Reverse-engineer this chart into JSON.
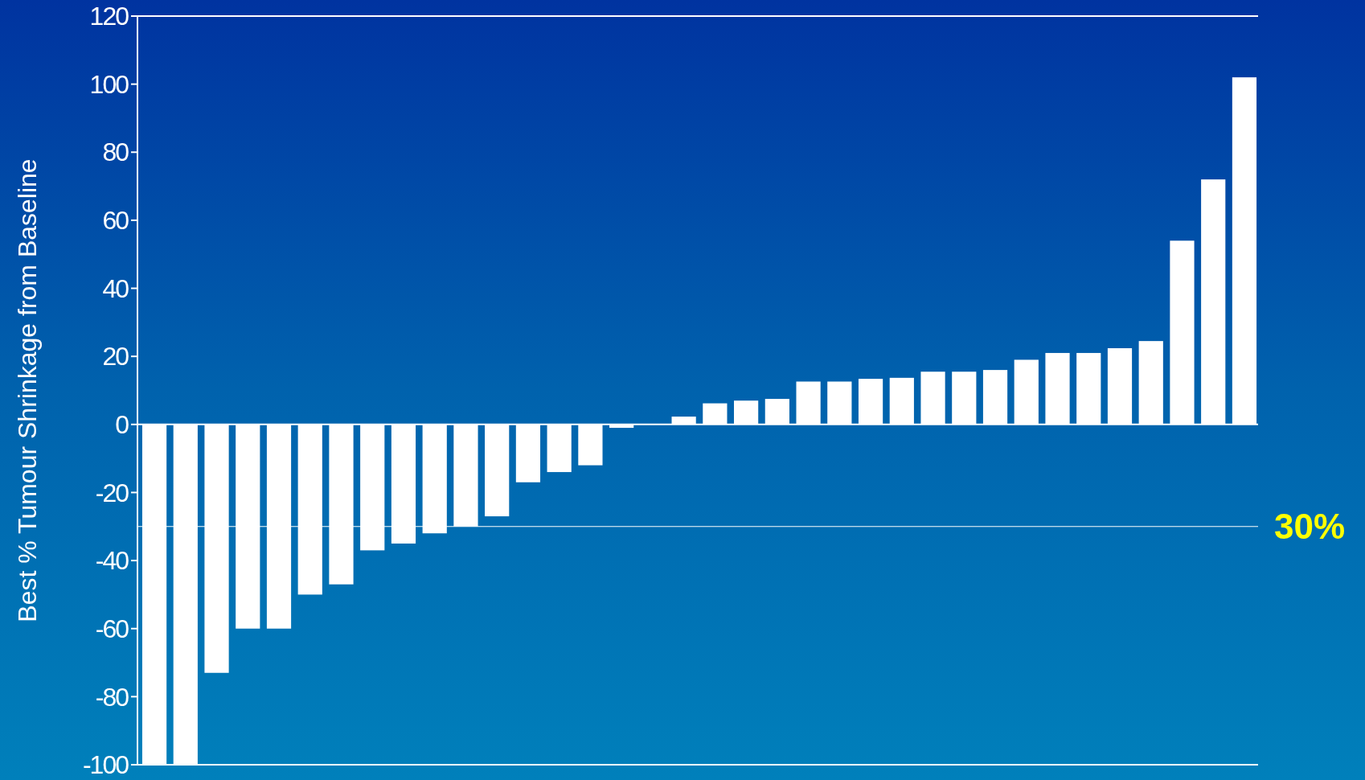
{
  "chart_data": {
    "type": "bar",
    "ylabel": "Best % Tumour Shrinkage from Baseline",
    "categories": [
      null,
      null,
      null,
      null,
      null,
      null,
      null,
      null,
      null,
      null,
      null,
      null,
      null,
      null,
      null,
      null,
      null,
      null,
      null,
      null,
      null,
      null,
      null,
      null,
      null,
      null,
      null,
      null,
      null,
      null,
      null,
      null,
      null,
      null,
      null,
      null
    ],
    "values": [
      -100,
      -100,
      -73,
      -60,
      -60,
      -50,
      -47,
      -37,
      -35,
      -32,
      -30,
      -27,
      -17,
      -14,
      -12,
      -1,
      0,
      2.3,
      6.2,
      7,
      7.5,
      12.6,
      12.6,
      13.4,
      13.7,
      15.5,
      15.5,
      16,
      19,
      21,
      21,
      22.4,
      24.5,
      54,
      72,
      102
    ],
    "color": "#ffffff",
    "ylim": [
      -100,
      120
    ],
    "yticks": [
      -100,
      -80,
      -60,
      -40,
      -20,
      0,
      20,
      40,
      60,
      80,
      100,
      120
    ],
    "ref_lines": [
      {
        "axis": "y",
        "value": -30,
        "color": "#ffffff"
      }
    ],
    "annotations": [
      "30%"
    ]
  }
}
